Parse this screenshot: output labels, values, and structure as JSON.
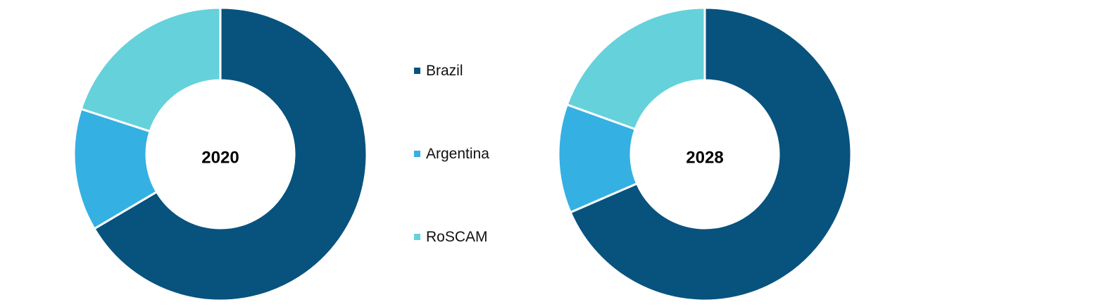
{
  "colors": {
    "brazil": "#08527E",
    "argentina": "#35B0E2",
    "roscam": "#65D1DB"
  },
  "legend": {
    "items": [
      {
        "label": "Brazil",
        "color_key": "brazil"
      },
      {
        "label": "Argentina",
        "color_key": "argentina"
      },
      {
        "label": "RoSCAM",
        "color_key": "roscam"
      }
    ]
  },
  "chart_data": [
    {
      "type": "pie",
      "variant": "donut",
      "center_label": "2020",
      "categories": [
        "Brazil",
        "Argentina",
        "RoSCAM"
      ],
      "values": [
        66.5,
        13.5,
        20.0
      ],
      "unit": "%"
    },
    {
      "type": "pie",
      "variant": "donut",
      "center_label": "2028",
      "categories": [
        "Brazil",
        "Argentina",
        "RoSCAM"
      ],
      "values": [
        68.5,
        12.0,
        19.5
      ],
      "unit": "%"
    }
  ]
}
